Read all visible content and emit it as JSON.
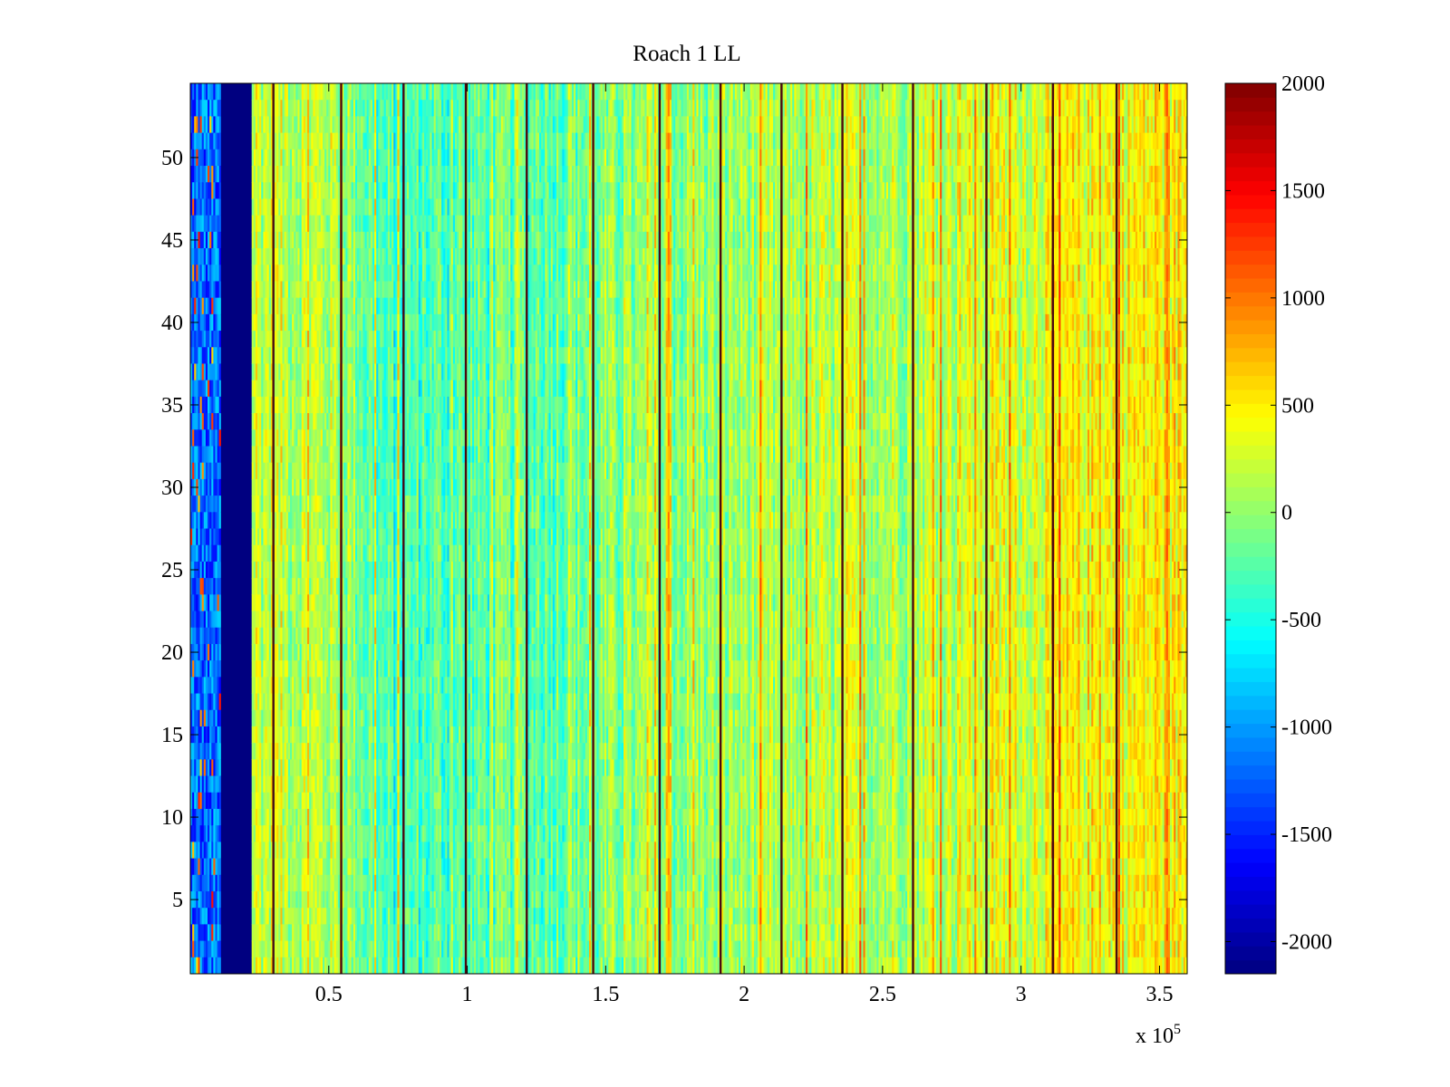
{
  "chart_data": {
    "type": "heatmap",
    "title": "Roach 1 LL",
    "xlabel": "",
    "ylabel": "",
    "x_multiplier": {
      "base": "x 10",
      "exponent": "5"
    },
    "xlim": [
      0,
      3.6
    ],
    "ylim": [
      0.5,
      54.5
    ],
    "x_ticks": [
      0.5,
      1,
      1.5,
      2,
      2.5,
      3,
      3.5
    ],
    "x_tick_labels": [
      "0.5",
      "1",
      "1.5",
      "2",
      "2.5",
      "3",
      "3.5"
    ],
    "y_ticks": [
      5,
      10,
      15,
      20,
      25,
      30,
      35,
      40,
      45,
      50
    ],
    "y_tick_labels": [
      "5",
      "10",
      "15",
      "20",
      "25",
      "30",
      "35",
      "40",
      "45",
      "50"
    ],
    "rows": 54,
    "colormap": "jet",
    "colorbar": {
      "clim": [
        -2150,
        2000
      ],
      "ticks": [
        2000,
        1500,
        1000,
        500,
        0,
        -500,
        -1000,
        -1500,
        -2000
      ],
      "tick_labels": [
        "2000",
        "1500",
        "1000",
        "500",
        "0",
        "-500",
        "-1000",
        "-1500",
        "-2000"
      ],
      "placement": "right"
    },
    "saturated_band": {
      "x_start": 0.11,
      "x_end": 0.22,
      "value": -2150
    },
    "low_region": {
      "x_start": 0.0,
      "x_end": 0.11,
      "mean_value": -1200
    },
    "dark_line_positions": [
      0.3,
      0.545,
      0.77,
      0.995,
      1.215,
      1.455,
      1.695,
      1.915,
      2.135,
      2.355,
      2.61,
      2.875,
      3.115,
      3.345
    ],
    "column_mean_profile": [
      {
        "x": 0.22,
        "value": 250
      },
      {
        "x": 0.55,
        "value": 100
      },
      {
        "x": 0.7,
        "value": -350
      },
      {
        "x": 1.0,
        "value": -250
      },
      {
        "x": 1.5,
        "value": -100
      },
      {
        "x": 2.0,
        "value": 50
      },
      {
        "x": 2.5,
        "value": 150
      },
      {
        "x": 3.0,
        "value": 300
      },
      {
        "x": 3.3,
        "value": 450
      },
      {
        "x": 3.6,
        "value": 500
      }
    ]
  }
}
